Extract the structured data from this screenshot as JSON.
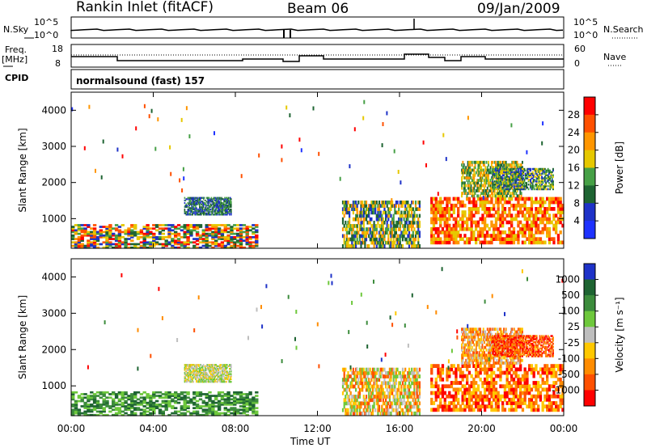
{
  "header": {
    "station": "Rankin Inlet (fitACF)",
    "beam": "Beam 06",
    "date": "09/Jan/2009"
  },
  "panels": {
    "nsky": {
      "left_label": "N.Sky",
      "right_label": "N.Search",
      "left_ticks": [
        "10^5",
        "10^0"
      ],
      "right_ticks": [
        "10^5",
        "10^0"
      ]
    },
    "freq": {
      "left_label": "Freq.",
      "left_unit": "[MHz]",
      "left_ticks": [
        "18",
        "8"
      ],
      "right_label": "Nave",
      "right_ticks": [
        "60",
        "0"
      ]
    },
    "cpid": {
      "left_label": "CPID",
      "text": "normalsound (fast) 157"
    }
  },
  "colors": {
    "blue": "#1f3fff",
    "green": "#4fa84f",
    "orange": "#ff8c00",
    "red": "#ff0000",
    "grey": "#bdbdbd"
  },
  "chart_data": [
    {
      "type": "heatmap",
      "ylabel": "Slant Range [km]",
      "xlabel": "Time UT",
      "x_ticks": [
        "00:00",
        "04:00",
        "08:00",
        "12:00",
        "16:00",
        "20:00",
        "00:00"
      ],
      "y_ticks": [
        "1000",
        "2000",
        "3000",
        "4000"
      ],
      "xlim_hours": [
        0,
        24
      ],
      "ylim_km": [
        180,
        4500
      ],
      "colorbar": {
        "label": "Power [dB]",
        "ticks": [
          "28",
          "24",
          "20",
          "16",
          "12",
          "8",
          "4"
        ],
        "colors": [
          "#ff0000",
          "#ff5000",
          "#ff9600",
          "#e6c800",
          "#46a046",
          "#1e6432",
          "#1e32c8",
          "#1e32ff"
        ]
      }
    },
    {
      "type": "heatmap",
      "ylabel": "Slant Range [km]",
      "xlabel": "Time UT",
      "x_ticks": [
        "00:00",
        "04:00",
        "08:00",
        "12:00",
        "16:00",
        "20:00",
        "00:00"
      ],
      "y_ticks": [
        "1000",
        "2000",
        "3000",
        "4000"
      ],
      "xlim_hours": [
        0,
        24
      ],
      "ylim_km": [
        180,
        4500
      ],
      "colorbar": {
        "label": "Velocity [m s⁻¹]",
        "ticks": [
          "1000",
          "500",
          "100",
          "25",
          "-25",
          "-100",
          "-500",
          "-1000"
        ],
        "colors": [
          "#1e32c8",
          "#1e6432",
          "#3c8c3c",
          "#6ec83c",
          "#bebebe",
          "#ffc800",
          "#ff8c00",
          "#ff5000",
          "#ff0000"
        ]
      }
    }
  ],
  "axis": {
    "time_label": "Time UT"
  }
}
